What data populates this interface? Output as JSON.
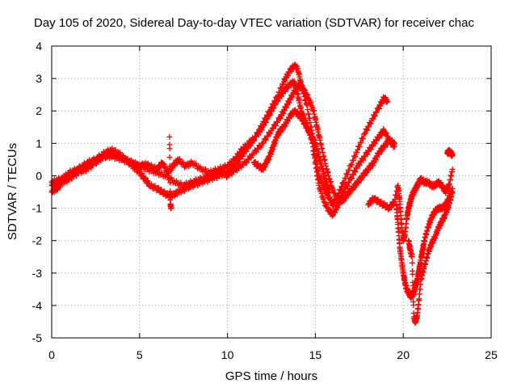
{
  "chart_data": {
    "type": "scatter",
    "title": "Day 105 of 2020, Sidereal Day-to-day VTEC variation (SDTVAR) for receiver chac",
    "xlabel": "GPS time / hours",
    "ylabel": "SDTVAR / TECUs",
    "xlim": [
      0,
      25
    ],
    "ylim": [
      -5,
      4
    ],
    "xticks": [
      "0",
      "5",
      "10",
      "15",
      "20",
      "25"
    ],
    "yticks": [
      "-5",
      "-4",
      "-3",
      "-2",
      "-1",
      "0",
      "1",
      "2",
      "3",
      "4"
    ],
    "grid": true,
    "marker": "plus",
    "color": "#ff0000",
    "series": [
      {
        "x": [
          0.0,
          0.3,
          0.6,
          1.0,
          1.5,
          2.0,
          2.5,
          3.0,
          3.4,
          3.8,
          4.2,
          4.6,
          5.0,
          5.3,
          5.6,
          6.0,
          6.3,
          6.6,
          6.9,
          7.2,
          7.6,
          8.0,
          8.5,
          9.0,
          9.5,
          10.0,
          10.4,
          10.8,
          11.2,
          11.6,
          12.0,
          12.4,
          12.8,
          13.2,
          13.5,
          13.8,
          14.0,
          14.2,
          14.5,
          14.8,
          15.0,
          15.2,
          15.5,
          15.8,
          16.0,
          16.3,
          16.6,
          17.0,
          17.4,
          17.8,
          18.2,
          18.6,
          18.9,
          19.1
        ],
        "y": [
          -0.5,
          -0.4,
          -0.2,
          -0.1,
          0.1,
          0.2,
          0.4,
          0.6,
          0.7,
          0.6,
          0.5,
          0.4,
          0.3,
          0.35,
          0.3,
          0.2,
          0.4,
          0.1,
          0.3,
          0.5,
          0.3,
          0.4,
          0.2,
          0.1,
          0.2,
          0.3,
          0.5,
          0.8,
          1.0,
          1.2,
          1.6,
          2.0,
          2.4,
          2.9,
          3.2,
          3.4,
          3.3,
          2.8,
          2.2,
          1.4,
          0.6,
          0.0,
          -0.4,
          -0.7,
          -0.9,
          -0.6,
          -0.2,
          0.3,
          0.8,
          1.3,
          1.7,
          2.1,
          2.4,
          2.3
        ]
      },
      {
        "x": [
          0.0,
          0.3,
          0.6,
          1.0,
          1.5,
          2.0,
          2.5,
          3.0,
          3.4,
          3.8,
          4.2,
          4.6,
          5.0,
          5.3,
          5.6,
          6.0,
          6.3,
          6.6,
          6.9,
          7.2,
          7.6,
          8.0,
          8.5,
          9.0,
          9.5,
          10.0,
          10.4,
          10.8,
          11.2,
          11.6,
          12.0,
          12.4,
          12.8,
          13.2,
          13.5,
          13.8,
          14.0,
          14.2,
          14.5,
          14.8,
          15.0,
          15.2,
          15.5,
          15.8,
          16.0,
          16.3,
          16.6,
          17.0,
          17.4,
          17.8,
          18.2,
          18.6,
          18.9,
          19.2,
          19.5
        ],
        "y": [
          -0.3,
          -0.2,
          -0.1,
          0.1,
          0.2,
          0.4,
          0.5,
          0.7,
          0.8,
          0.7,
          0.5,
          0.3,
          0.1,
          -0.1,
          -0.3,
          -0.4,
          -0.5,
          -0.6,
          -0.6,
          -0.5,
          -0.4,
          -0.3,
          -0.2,
          -0.1,
          0.0,
          0.1,
          0.3,
          0.6,
          0.9,
          1.2,
          1.5,
          1.9,
          2.3,
          2.6,
          2.8,
          2.9,
          2.5,
          2.0,
          1.6,
          1.1,
          0.4,
          -0.3,
          -0.8,
          -1.1,
          -1.2,
          -0.9,
          -0.5,
          -0.1,
          0.3,
          0.6,
          0.9,
          1.2,
          1.4,
          1.1,
          0.9
        ]
      },
      {
        "x": [
          0.0,
          0.5,
          1.0,
          1.5,
          2.0,
          2.5,
          3.0,
          3.5,
          4.0,
          4.5,
          5.0,
          5.5,
          6.0,
          6.5,
          7.0,
          7.5,
          8.0,
          8.5,
          9.0,
          9.5,
          10.0,
          10.5,
          11.0,
          11.5,
          12.0,
          12.5,
          13.0,
          13.3,
          13.6,
          13.9,
          14.1,
          14.3,
          14.6,
          14.9,
          15.1,
          15.3,
          15.6,
          15.9,
          16.2,
          16.5,
          16.8,
          17.1,
          17.4,
          17.7,
          18.0,
          18.3,
          18.6,
          18.9,
          19.2,
          19.5
        ],
        "y": [
          -0.2,
          -0.1,
          0.0,
          0.2,
          0.3,
          0.5,
          0.6,
          0.6,
          0.5,
          0.4,
          0.3,
          0.2,
          0.1,
          0.0,
          -0.2,
          -0.3,
          -0.2,
          -0.1,
          0.0,
          0.1,
          0.0,
          0.2,
          0.4,
          0.7,
          1.0,
          1.4,
          1.8,
          2.1,
          2.4,
          2.7,
          2.8,
          2.7,
          2.4,
          2.0,
          1.5,
          1.0,
          0.3,
          -0.3,
          -0.7,
          -0.8,
          -0.6,
          -0.4,
          -0.2,
          0.0,
          0.2,
          0.4,
          0.7,
          0.9,
          1.1,
          1.0
        ]
      },
      {
        "x": [
          11.5,
          11.8,
          12.0,
          12.2,
          12.4,
          12.6,
          12.8,
          13.0,
          13.2,
          13.5,
          13.8,
          14.0,
          14.2,
          14.4,
          14.6,
          14.8,
          15.0,
          15.2,
          15.4,
          15.6,
          15.8
        ],
        "y": [
          0.4,
          0.3,
          0.2,
          0.4,
          0.6,
          0.9,
          1.2,
          1.4,
          1.5,
          1.8,
          2.0,
          1.9,
          1.8,
          1.6,
          1.4,
          1.2,
          1.0,
          0.6,
          0.2,
          -0.2,
          -0.5
        ]
      },
      {
        "x": [
          18.0,
          18.3,
          18.6,
          18.9,
          19.2,
          19.5,
          19.7,
          19.8,
          19.9,
          20.0,
          20.1,
          20.2,
          20.3,
          20.4,
          20.5,
          20.6,
          20.7,
          20.8,
          20.9,
          21.0,
          21.2,
          21.4,
          21.6,
          21.8,
          22.0,
          22.2,
          22.4,
          22.6,
          22.8
        ],
        "y": [
          -0.9,
          -0.7,
          -0.8,
          -0.9,
          -1.0,
          -0.8,
          -0.3,
          -0.8,
          -1.5,
          -2.0,
          -1.8,
          -1.3,
          -1.0,
          -0.8,
          -0.6,
          -0.5,
          -0.4,
          -0.3,
          -0.2,
          -0.1,
          -0.2,
          -0.2,
          -0.3,
          -0.3,
          -0.2,
          -0.3,
          -0.5,
          -0.3,
          0.2
        ]
      },
      {
        "x": [
          19.6,
          19.7,
          19.8,
          19.9,
          20.0,
          20.1,
          20.2,
          20.3,
          20.4,
          20.5,
          20.6,
          20.7,
          20.8,
          20.9,
          21.0,
          21.1,
          21.2,
          21.4,
          21.6,
          21.8,
          22.0,
          22.2,
          22.4,
          22.6,
          22.8
        ],
        "y": [
          -0.9,
          -1.5,
          -2.2,
          -2.6,
          -3.0,
          -3.3,
          -3.5,
          -3.6,
          -3.7,
          -3.7,
          -3.6,
          -3.4,
          -3.2,
          -2.9,
          -2.6,
          -2.3,
          -2.0,
          -1.6,
          -1.3,
          -1.1,
          -1.0,
          -1.0,
          -0.9,
          -0.7,
          -0.4
        ]
      },
      {
        "x": [
          20.3,
          20.4,
          20.5,
          20.6,
          20.7,
          20.8,
          20.9,
          21.0,
          21.2,
          21.4,
          21.6,
          21.8,
          22.0,
          22.2,
          22.4,
          22.6,
          22.8
        ],
        "y": [
          -2.0,
          -2.3,
          -2.5,
          -4.4,
          -4.5,
          -4.3,
          -3.8,
          -3.2,
          -2.8,
          -2.4,
          -2.1,
          -1.9,
          -1.6,
          -1.4,
          -1.2,
          -0.9,
          -0.5
        ]
      },
      {
        "x": [
          22.5,
          22.6,
          22.7,
          22.8,
          6.7,
          6.75,
          6.8
        ],
        "y": [
          0.7,
          0.75,
          0.7,
          0.65,
          1.2,
          -0.9,
          -1.0
        ]
      }
    ]
  }
}
